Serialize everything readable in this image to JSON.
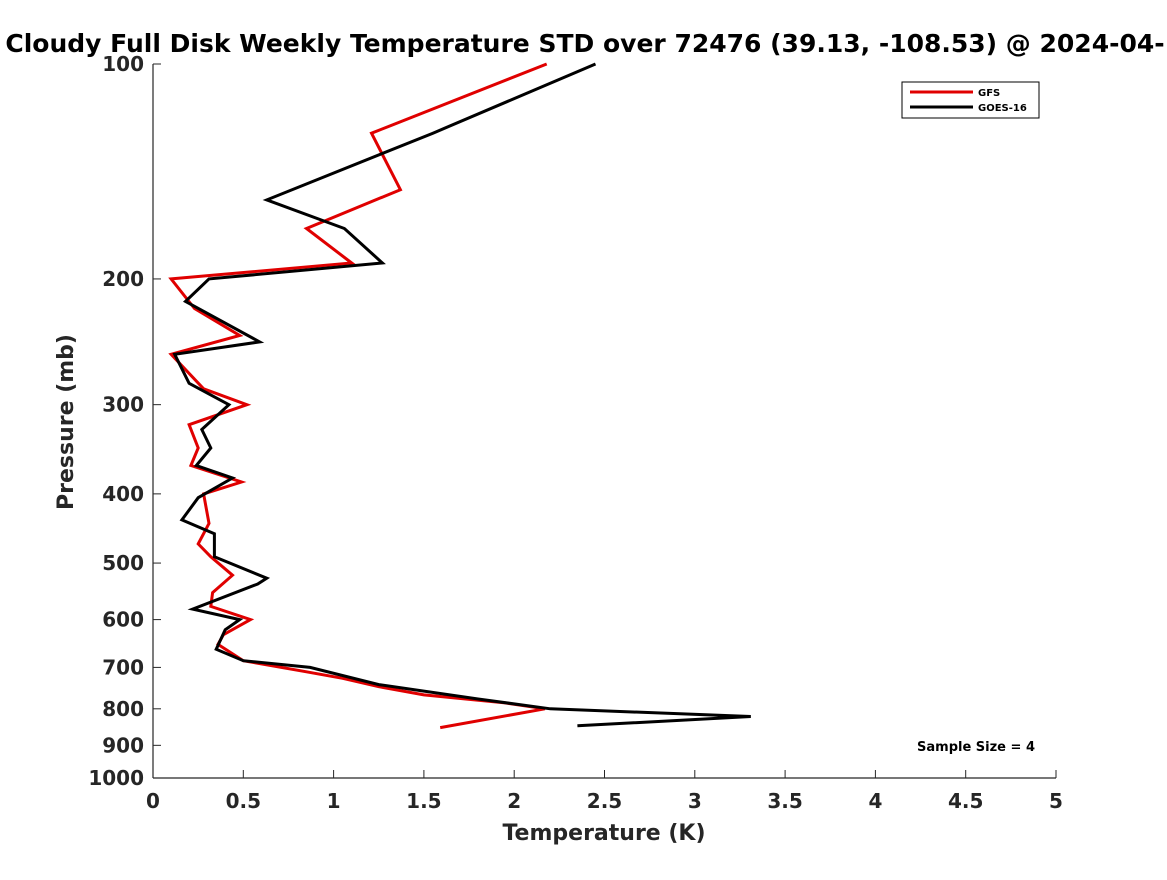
{
  "chart_data": {
    "type": "line",
    "title": "Cloudy Full Disk Weekly Temperature STD over 72476 (39.13, -108.53) @ 2024-04-",
    "xlabel": "Temperature (K)",
    "ylabel": "Pressure (mb)",
    "xlim": [
      0,
      5
    ],
    "ylim": [
      1000,
      100
    ],
    "yscale": "log",
    "x_ticks": [
      "0",
      "0.5",
      "1",
      "1.5",
      "2",
      "2.5",
      "3",
      "3.5",
      "4",
      "4.5",
      "5"
    ],
    "y_ticks": [
      "100",
      "200",
      "300",
      "400",
      "500",
      "600",
      "700",
      "800",
      "900",
      "1000"
    ],
    "grid": false,
    "legend_position": "top-right",
    "annotation": "Sample Size = 4",
    "series": [
      {
        "name": "GFS",
        "color": "#e00000",
        "points": [
          [
            2.18,
            100
          ],
          [
            1.21,
            125
          ],
          [
            1.37,
            150
          ],
          [
            0.85,
            170
          ],
          [
            1.1,
            190
          ],
          [
            0.1,
            200
          ],
          [
            0.23,
            220
          ],
          [
            0.48,
            240
          ],
          [
            0.1,
            255
          ],
          [
            0.28,
            285
          ],
          [
            0.52,
            300
          ],
          [
            0.2,
            320
          ],
          [
            0.25,
            345
          ],
          [
            0.21,
            365
          ],
          [
            0.49,
            385
          ],
          [
            0.28,
            400
          ],
          [
            0.31,
            440
          ],
          [
            0.25,
            470
          ],
          [
            0.32,
            490
          ],
          [
            0.44,
            520
          ],
          [
            0.33,
            550
          ],
          [
            0.32,
            575
          ],
          [
            0.54,
            600
          ],
          [
            0.39,
            630
          ],
          [
            0.36,
            650
          ],
          [
            0.5,
            685
          ],
          [
            0.85,
            710
          ],
          [
            1.05,
            725
          ],
          [
            1.25,
            745
          ],
          [
            1.5,
            765
          ],
          [
            1.95,
            785
          ],
          [
            2.17,
            800
          ],
          [
            1.59,
            850
          ]
        ]
      },
      {
        "name": "GOES-16",
        "color": "#000000",
        "points": [
          [
            2.45,
            100
          ],
          [
            1.55,
            125
          ],
          [
            0.63,
            155
          ],
          [
            1.06,
            170
          ],
          [
            1.27,
            190
          ],
          [
            0.31,
            200
          ],
          [
            0.18,
            215
          ],
          [
            0.59,
            245
          ],
          [
            0.12,
            255
          ],
          [
            0.2,
            280
          ],
          [
            0.42,
            300
          ],
          [
            0.27,
            325
          ],
          [
            0.32,
            345
          ],
          [
            0.24,
            365
          ],
          [
            0.44,
            380
          ],
          [
            0.25,
            405
          ],
          [
            0.16,
            435
          ],
          [
            0.34,
            455
          ],
          [
            0.34,
            490
          ],
          [
            0.63,
            525
          ],
          [
            0.58,
            535
          ],
          [
            0.22,
            580
          ],
          [
            0.48,
            600
          ],
          [
            0.4,
            620
          ],
          [
            0.35,
            660
          ],
          [
            0.5,
            685
          ],
          [
            0.87,
            700
          ],
          [
            1.25,
            740
          ],
          [
            1.8,
            775
          ],
          [
            2.2,
            800
          ],
          [
            3.31,
            820
          ],
          [
            2.35,
            845
          ]
        ]
      }
    ]
  }
}
